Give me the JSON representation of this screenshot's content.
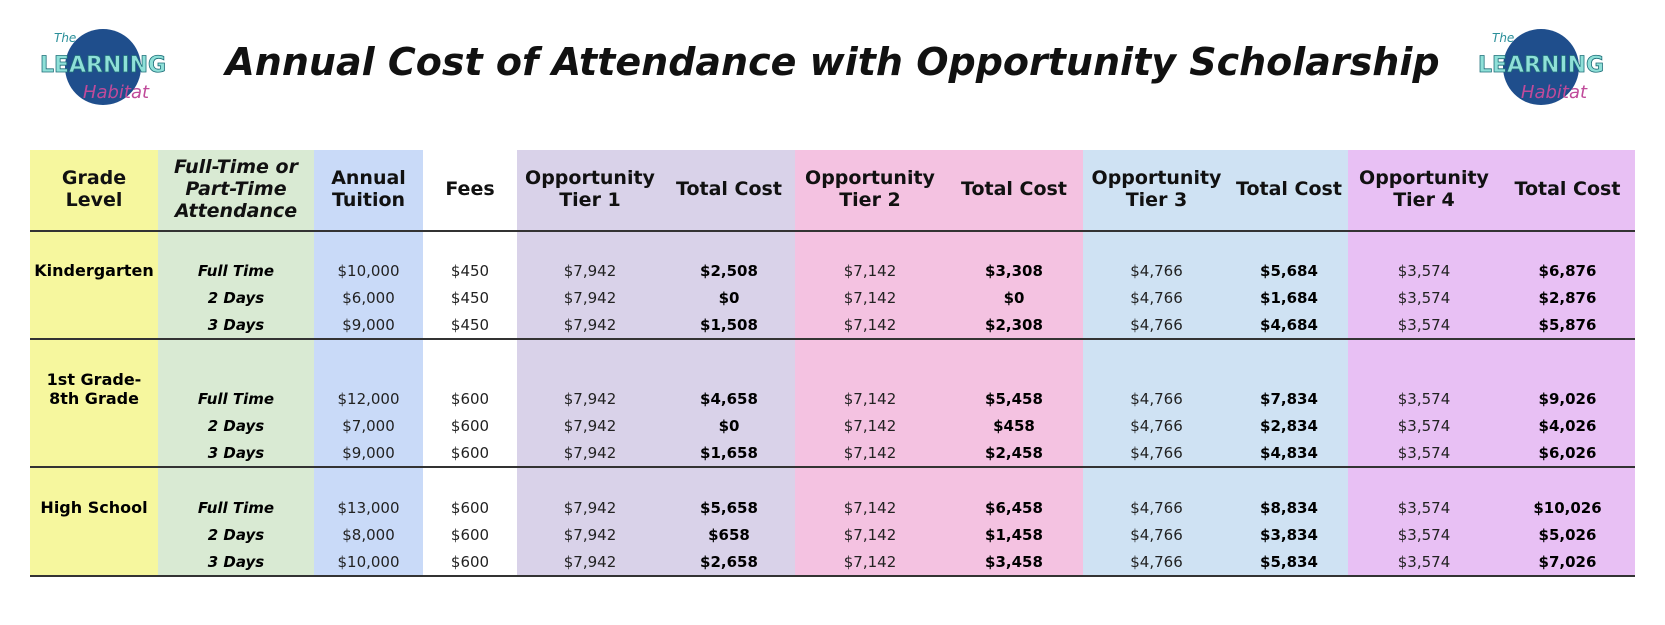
{
  "logo": {
    "small": "The",
    "main": "LEARNING",
    "script": "Habitat"
  },
  "title": "Annual Cost of Attendance with Opportunity Scholarship",
  "table": {
    "columns": [
      "Grade Level",
      "Full-Time or Part-Time Attendance",
      "Annual Tuition",
      "Fees",
      "Opportunity Tier 1",
      "Total Cost",
      "Opportunity Tier 2",
      "Total Cost",
      "Opportunity Tier 3",
      "Total Cost",
      "Opportunity Tier 4",
      "Total Cost"
    ],
    "groups": [
      {
        "grade": "Kindergarten",
        "rows": [
          [
            "Full Time",
            "$10,000",
            "$450",
            "$7,942",
            "$2,508",
            "$7,142",
            "$3,308",
            "$4,766",
            "$5,684",
            "$3,574",
            "$6,876"
          ],
          [
            "2 Days",
            "$6,000",
            "$450",
            "$7,942",
            "$0",
            "$7,142",
            "$0",
            "$4,766",
            "$1,684",
            "$3,574",
            "$2,876"
          ],
          [
            "3 Days",
            "$9,000",
            "$450",
            "$7,942",
            "$1,508",
            "$7,142",
            "$2,308",
            "$4,766",
            "$4,684",
            "$3,574",
            "$5,876"
          ]
        ]
      },
      {
        "grade": "1st Grade- 8th Grade",
        "rows": [
          [
            "Full Time",
            "$12,000",
            "$600",
            "$7,942",
            "$4,658",
            "$7,142",
            "$5,458",
            "$4,766",
            "$7,834",
            "$3,574",
            "$9,026"
          ],
          [
            "2 Days",
            "$7,000",
            "$600",
            "$7,942",
            "$0",
            "$7,142",
            "$458",
            "$4,766",
            "$2,834",
            "$3,574",
            "$4,026"
          ],
          [
            "3 Days",
            "$9,000",
            "$600",
            "$7,942",
            "$1,658",
            "$7,142",
            "$2,458",
            "$4,766",
            "$4,834",
            "$3,574",
            "$6,026"
          ]
        ]
      },
      {
        "grade": "High School",
        "rows": [
          [
            "Full Time",
            "$13,000",
            "$600",
            "$7,942",
            "$5,658",
            "$7,142",
            "$6,458",
            "$4,766",
            "$8,834",
            "$3,574",
            "$10,026"
          ],
          [
            "2 Days",
            "$8,000",
            "$600",
            "$7,942",
            "$658",
            "$7,142",
            "$1,458",
            "$4,766",
            "$3,834",
            "$3,574",
            "$5,026"
          ],
          [
            "3 Days",
            "$10,000",
            "$600",
            "$7,942",
            "$2,658",
            "$7,142",
            "$3,458",
            "$4,766",
            "$5,834",
            "$3,574",
            "$7,026"
          ]
        ]
      }
    ]
  }
}
